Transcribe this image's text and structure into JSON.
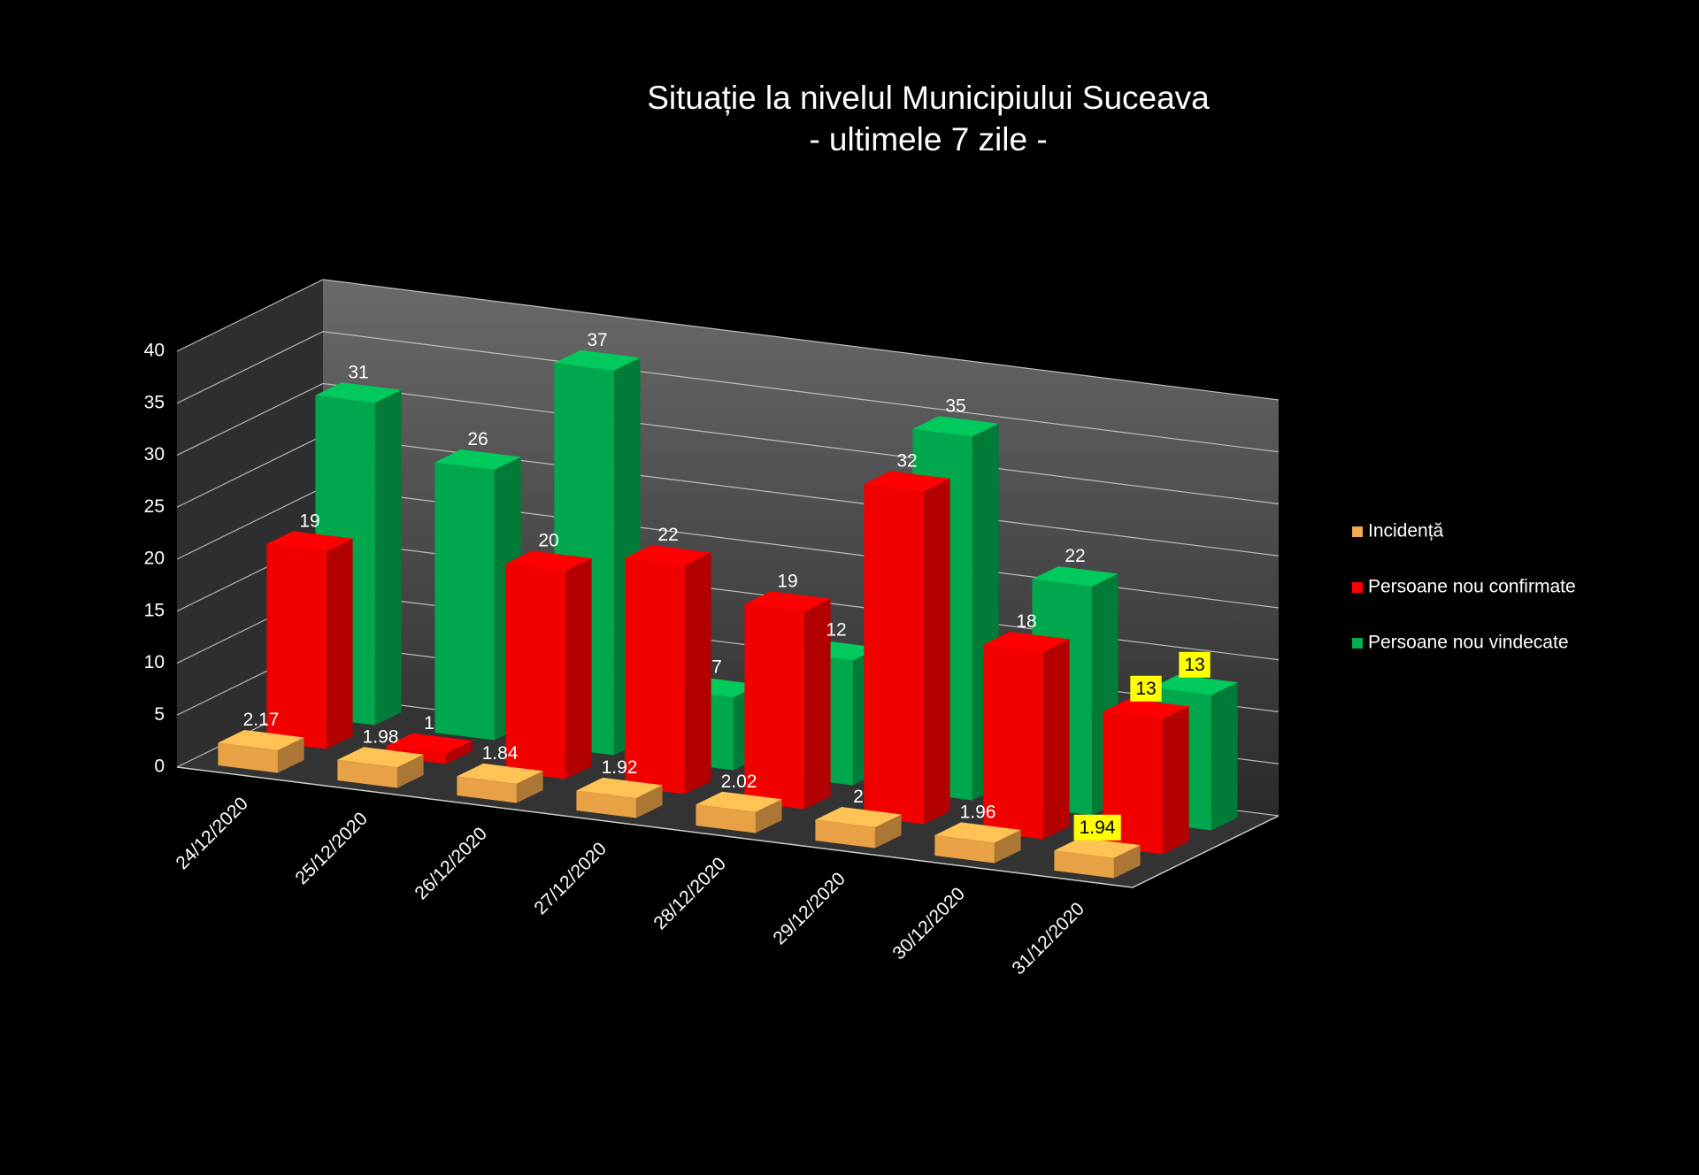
{
  "chart_data": {
    "type": "bar3d",
    "title": "Situație la nivelul Municipiului Suceava",
    "subtitle": "- ultimele 7 zile -",
    "categories": [
      "24/12/2020",
      "25/12/2020",
      "26/12/2020",
      "27/12/2020",
      "28/12/2020",
      "29/12/2020",
      "30/12/2020",
      "31/12/2020"
    ],
    "series": [
      {
        "name": "Incidență",
        "color": "#f5a94a",
        "values": [
          2.17,
          1.98,
          1.84,
          1.92,
          2.02,
          2,
          1.96,
          1.94
        ]
      },
      {
        "name": "Persoane nou confirmate",
        "color": "#ff0000",
        "values": [
          19,
          1,
          20,
          22,
          19,
          32,
          18,
          13
        ]
      },
      {
        "name": "Persoane nou vindecate",
        "color": "#00b050",
        "values": [
          31,
          26,
          37,
          7,
          12,
          35,
          22,
          13
        ]
      }
    ],
    "ylim": [
      0,
      40
    ],
    "yticks": [
      0,
      5,
      10,
      15,
      20,
      25,
      30,
      35,
      40
    ],
    "grid": true
  }
}
